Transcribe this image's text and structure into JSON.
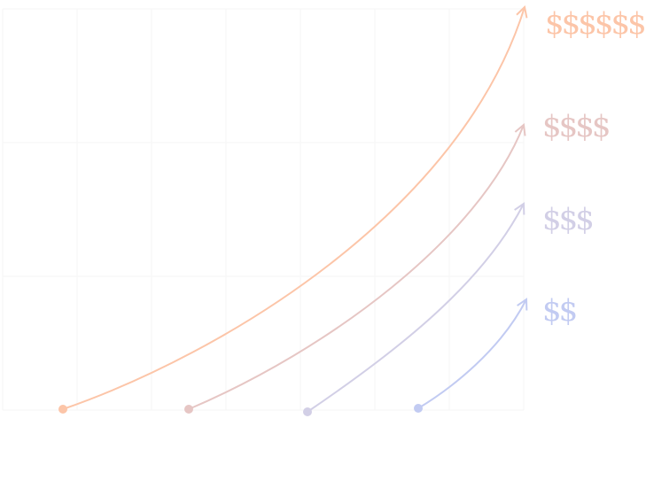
{
  "tiers": [
    {
      "label": "$$$$$$",
      "color": "#fcc5a8"
    },
    {
      "label": "$$$$",
      "color": "#e6c6c4"
    },
    {
      "label": "$$$",
      "color": "#d2cfe6"
    },
    {
      "label": "$$",
      "color": "#c2cbf2"
    }
  ],
  "grid_color": "#f6f6f6"
}
